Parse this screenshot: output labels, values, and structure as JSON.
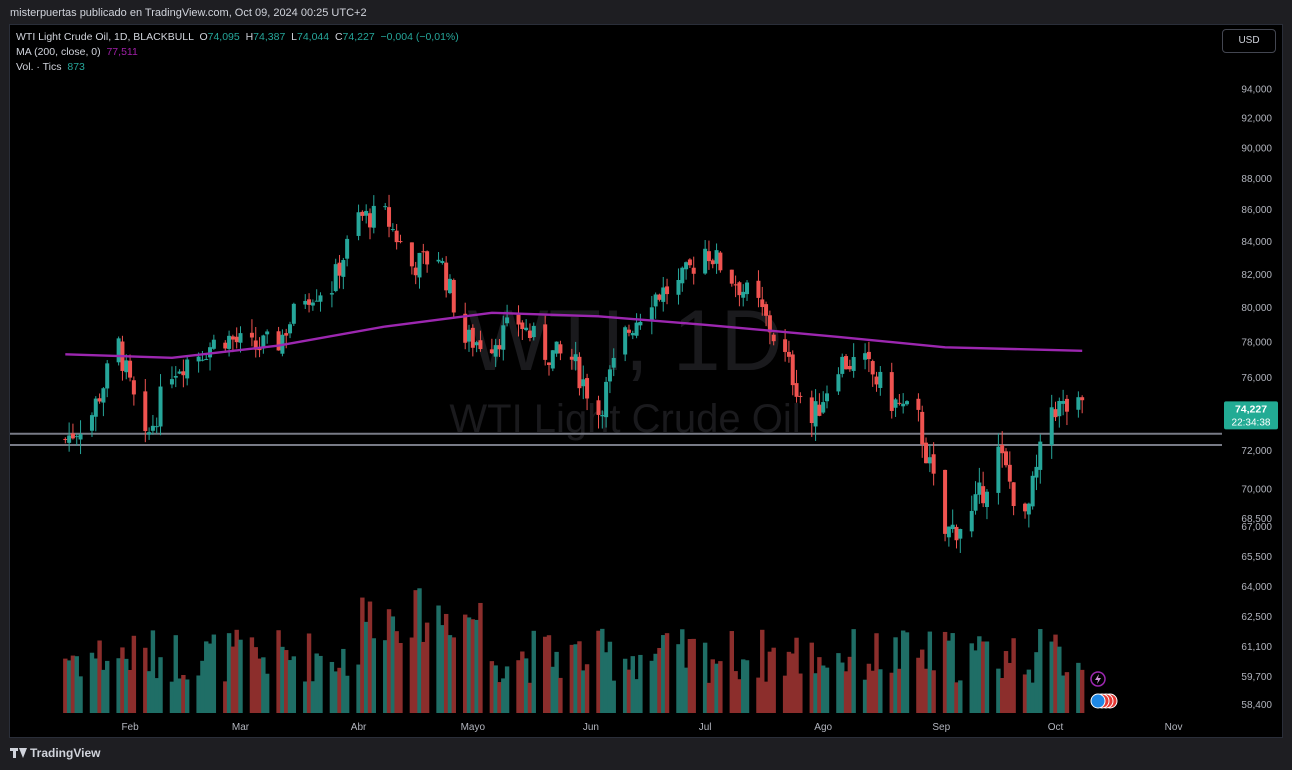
{
  "header": {
    "publisher_line": "misterpuertas publicado en TradingView.com, Oct 09, 2024 00:25 UTC+2"
  },
  "legend": {
    "symbol": "WTI Light Crude Oil, 1D, BLACKBULL",
    "o_label": "O",
    "o_value": "74,095",
    "h_label": "H",
    "h_value": "74,387",
    "l_label": "L",
    "l_value": "74,044",
    "c_label": "C",
    "c_value": "74,227",
    "change": "−0,004 (−0,01%)",
    "ma_label": "MA (200, close, 0)",
    "ma_value": "77,511",
    "vol_label": "Vol. · Tics",
    "vol_value": "873"
  },
  "currency_button": "USD",
  "watermark": {
    "ticker": "WTI, 1D",
    "name": "WTI Light Crude Oil"
  },
  "price_tag": {
    "price": "74,227",
    "countdown": "22:34:38"
  },
  "footer": {
    "brand": "TradingView"
  },
  "colors": {
    "up": "#26a69a",
    "down": "#ef5350",
    "ma": "#9c27b0",
    "vol_up": "#1f6e66",
    "vol_down": "#8c2e2c",
    "grid_text": "#b2b5be",
    "hline": "#787b86"
  },
  "chart_data": {
    "type": "candlestick",
    "symbol": "WTI Light Crude Oil",
    "timeframe": "1D",
    "x_month_labels": [
      "Feb",
      "Mar",
      "Abr",
      "Mayo",
      "Jun",
      "Jul",
      "Ago",
      "Sep",
      "Oct",
      "Nov"
    ],
    "y_tick_labels": [
      "94,000",
      "92,000",
      "90,000",
      "88,000",
      "86,000",
      "84,000",
      "82,000",
      "80,000",
      "78,000",
      "76,000",
      "74,000",
      "72,000",
      "70,000",
      "68,500",
      "67,000",
      "65,500",
      "64,000",
      "62,500",
      "61,100",
      "59,700",
      "58,400"
    ],
    "y_axis_scale": "log",
    "y_range": [
      58.0,
      96.0
    ],
    "horizontal_levels": [
      72.9,
      72.3
    ],
    "close_series": [
      {
        "date": "2024-01-15",
        "close": 72.6
      },
      {
        "date": "2024-01-22",
        "close": 74.0
      },
      {
        "date": "2024-01-29",
        "close": 77.8
      },
      {
        "date": "2024-02-05",
        "close": 72.3
      },
      {
        "date": "2024-02-12",
        "close": 76.5
      },
      {
        "date": "2024-02-19",
        "close": 77.4
      },
      {
        "date": "2024-02-26",
        "close": 78.3
      },
      {
        "date": "2024-03-04",
        "close": 77.6
      },
      {
        "date": "2024-03-11",
        "close": 78.0
      },
      {
        "date": "2024-03-18",
        "close": 80.8
      },
      {
        "date": "2024-03-25",
        "close": 81.3
      },
      {
        "date": "2024-04-01",
        "close": 85.5
      },
      {
        "date": "2024-04-08",
        "close": 85.6
      },
      {
        "date": "2024-04-15",
        "close": 82.5
      },
      {
        "date": "2024-04-22",
        "close": 83.2
      },
      {
        "date": "2024-04-29",
        "close": 78.1
      },
      {
        "date": "2024-05-06",
        "close": 78.0
      },
      {
        "date": "2024-05-13",
        "close": 79.2
      },
      {
        "date": "2024-05-20",
        "close": 77.4
      },
      {
        "date": "2024-05-27",
        "close": 77.0
      },
      {
        "date": "2024-06-03",
        "close": 74.1
      },
      {
        "date": "2024-06-10",
        "close": 78.4
      },
      {
        "date": "2024-06-17",
        "close": 80.7
      },
      {
        "date": "2024-06-24",
        "close": 81.3
      },
      {
        "date": "2024-07-01",
        "close": 83.6
      },
      {
        "date": "2024-07-08",
        "close": 81.8
      },
      {
        "date": "2024-07-15",
        "close": 80.1
      },
      {
        "date": "2024-07-22",
        "close": 77.1
      },
      {
        "date": "2024-07-29",
        "close": 73.5
      },
      {
        "date": "2024-08-05",
        "close": 76.9
      },
      {
        "date": "2024-08-12",
        "close": 76.7
      },
      {
        "date": "2024-08-19",
        "close": 74.7
      },
      {
        "date": "2024-08-26",
        "close": 73.6
      },
      {
        "date": "2024-09-02",
        "close": 67.7
      },
      {
        "date": "2024-09-09",
        "close": 68.6
      },
      {
        "date": "2024-09-16",
        "close": 71.9
      },
      {
        "date": "2024-09-23",
        "close": 68.2
      },
      {
        "date": "2024-09-30",
        "close": 74.4
      },
      {
        "date": "2024-10-07",
        "close": 74.2
      }
    ],
    "moving_average": {
      "name": "MA (200, close, 0)",
      "points": [
        {
          "date": "2024-01-15",
          "value": 77.3
        },
        {
          "date": "2024-02-12",
          "value": 77.1
        },
        {
          "date": "2024-03-11",
          "value": 77.8
        },
        {
          "date": "2024-04-08",
          "value": 78.9
        },
        {
          "date": "2024-05-06",
          "value": 79.7
        },
        {
          "date": "2024-06-03",
          "value": 79.5
        },
        {
          "date": "2024-07-01",
          "value": 79.0
        },
        {
          "date": "2024-08-05",
          "value": 78.3
        },
        {
          "date": "2024-09-02",
          "value": 77.7
        },
        {
          "date": "2024-10-08",
          "value": 77.5
        }
      ]
    },
    "volume_panel": true,
    "last_close": 74.227
  }
}
